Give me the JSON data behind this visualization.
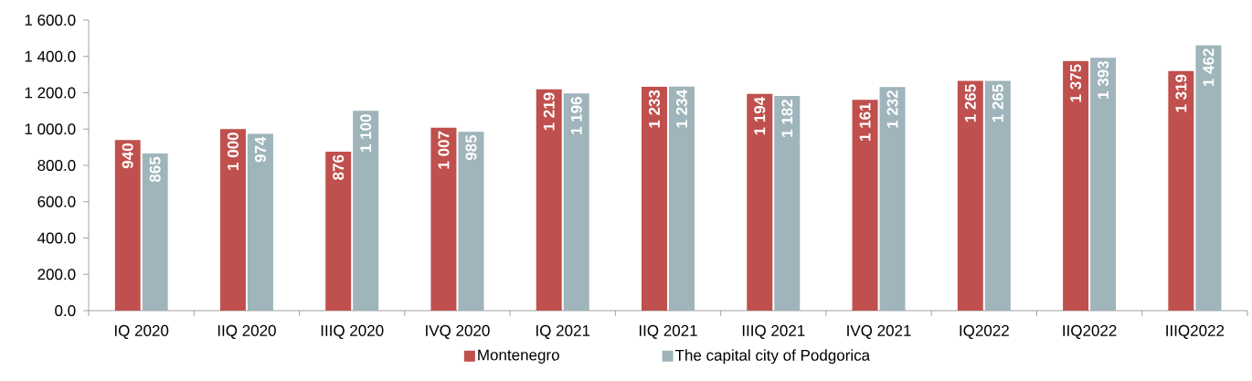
{
  "chart_data": {
    "type": "bar",
    "categories": [
      "IQ 2020",
      "IIQ 2020",
      "IIIQ 2020",
      "IVQ 2020",
      "IQ 2021",
      "IIQ 2021",
      "IIIQ 2021",
      "IVQ 2021",
      "IQ2022",
      "IIQ2022",
      "IIIQ2022"
    ],
    "series": [
      {
        "name": "Montenegro",
        "color": "#c0504d",
        "values": [
          940,
          1000,
          876,
          1007,
          1219,
          1233,
          1194,
          1161,
          1265,
          1375,
          1319
        ],
        "value_labels": [
          "940",
          "1 000",
          "876",
          "1 007",
          "1 219",
          "1 233",
          "1 194",
          "1 161",
          "1 265",
          "1 375",
          "1 319"
        ]
      },
      {
        "name": "The capital city of Podgorica",
        "color": "#9fb4bb",
        "values": [
          865,
          974,
          1100,
          985,
          1196,
          1234,
          1182,
          1232,
          1265,
          1393,
          1462
        ],
        "value_labels": [
          "865",
          "974",
          "1 100",
          "985",
          "1 196",
          "1 234",
          "1 182",
          "1 232",
          "1 265",
          "1 393",
          "1 462"
        ]
      }
    ],
    "ylim": [
      0,
      1600
    ],
    "yticks": [
      {
        "value": 0,
        "label": "0.0"
      },
      {
        "value": 200,
        "label": "200.0"
      },
      {
        "value": 400,
        "label": "400.0"
      },
      {
        "value": 600,
        "label": "600.0"
      },
      {
        "value": 800,
        "label": "800.0"
      },
      {
        "value": 1000,
        "label": "1 000.0"
      },
      {
        "value": 1200,
        "label": "1 200.0"
      },
      {
        "value": 1400,
        "label": "1 400.0"
      },
      {
        "value": 1600,
        "label": "1 600.0"
      }
    ],
    "grid": false,
    "legend": "bottom"
  }
}
